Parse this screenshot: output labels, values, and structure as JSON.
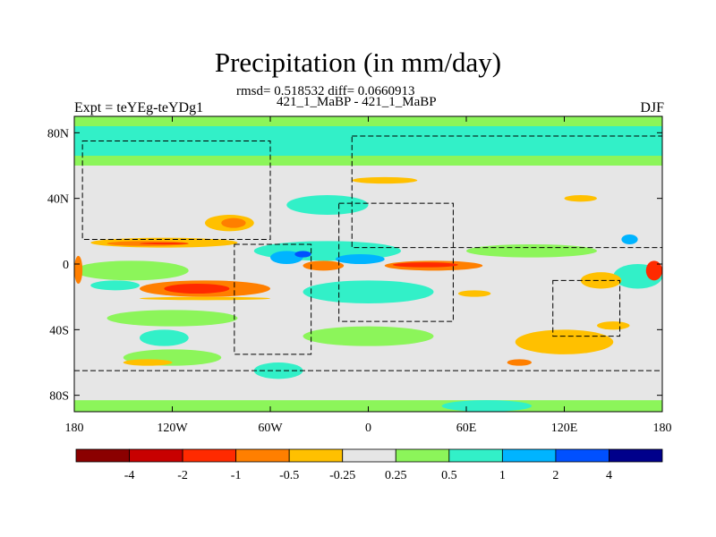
{
  "title": "Precipitation (in mm/day)",
  "stats": "rmsd= 0.518532 diff= 0.0660913",
  "subtitle": "421_1_MaBP - 421_1_MaBP",
  "left_label": "Expt = teYEg-teYDg1",
  "right_label": "DJF",
  "chart_data": {
    "type": "heatmap",
    "projection": "cylindrical-equidistant",
    "xlim": [
      -180,
      180
    ],
    "ylim": [
      -90,
      90
    ],
    "x_ticks": [
      {
        "value": -180,
        "label": "180"
      },
      {
        "value": -120,
        "label": "120W"
      },
      {
        "value": -60,
        "label": "60W"
      },
      {
        "value": 0,
        "label": "0"
      },
      {
        "value": 60,
        "label": "60E"
      },
      {
        "value": 120,
        "label": "120E"
      },
      {
        "value": 180,
        "label": "180"
      }
    ],
    "y_ticks": [
      {
        "value": 80,
        "label": "80N"
      },
      {
        "value": 40,
        "label": "40N"
      },
      {
        "value": 0,
        "label": "0"
      },
      {
        "value": -40,
        "label": "40S"
      },
      {
        "value": -80,
        "label": "80S"
      }
    ],
    "colorbar": {
      "levels": [
        -4,
        -2,
        -1,
        -0.5,
        -0.25,
        0.25,
        0.5,
        1,
        2,
        4
      ],
      "labels": [
        "-4",
        "-2",
        "-1",
        "-0.5",
        "-0.25",
        "0.25",
        "0.5",
        "1",
        "2",
        "4"
      ],
      "colors": [
        "#8b0000",
        "#c80000",
        "#ff2a00",
        "#ff7f00",
        "#ffc000",
        "#e6e6e6",
        "#8cf55a",
        "#32f0c8",
        "#00b4ff",
        "#0050ff",
        "#00008b"
      ]
    },
    "regions": [
      {
        "bin": 7,
        "lon": [
          -180,
          180
        ],
        "lat": [
          62,
          90
        ]
      },
      {
        "bin": 6,
        "lon": [
          -180,
          180
        ],
        "lat": [
          60,
          66
        ]
      },
      {
        "bin": 6,
        "lon": [
          -180,
          180
        ],
        "lat": [
          84,
          90
        ]
      },
      {
        "bin": 6,
        "lon": [
          -180,
          180
        ],
        "lat": [
          -90,
          -83
        ]
      },
      {
        "bin": 7,
        "lon": [
          45,
          100
        ],
        "lat": [
          -90,
          -83
        ]
      },
      {
        "bin": 6,
        "lon": [
          -180,
          -110
        ],
        "lat": [
          -10,
          2
        ]
      },
      {
        "bin": 6,
        "lon": [
          -160,
          -80
        ],
        "lat": [
          -38,
          -28
        ]
      },
      {
        "bin": 6,
        "lon": [
          60,
          140
        ],
        "lat": [
          4,
          12
        ]
      },
      {
        "bin": 6,
        "lon": [
          -40,
          40
        ],
        "lat": [
          -50,
          -38
        ]
      },
      {
        "bin": 6,
        "lon": [
          -150,
          -90
        ],
        "lat": [
          -62,
          -52
        ]
      },
      {
        "bin": 7,
        "lon": [
          -70,
          20
        ],
        "lat": [
          2,
          14
        ]
      },
      {
        "bin": 7,
        "lon": [
          -40,
          40
        ],
        "lat": [
          -24,
          -10
        ]
      },
      {
        "bin": 7,
        "lon": [
          -50,
          0
        ],
        "lat": [
          30,
          42
        ]
      },
      {
        "bin": 7,
        "lon": [
          150,
          180
        ],
        "lat": [
          -15,
          0
        ]
      },
      {
        "bin": 7,
        "lon": [
          -70,
          -40
        ],
        "lat": [
          -70,
          -60
        ]
      },
      {
        "bin": 7,
        "lon": [
          -170,
          -140
        ],
        "lat": [
          -16,
          -10
        ]
      },
      {
        "bin": 7,
        "lon": [
          -140,
          -110
        ],
        "lat": [
          -50,
          -40
        ]
      },
      {
        "bin": 8,
        "lon": [
          -60,
          -40
        ],
        "lat": [
          0,
          8
        ]
      },
      {
        "bin": 8,
        "lon": [
          -20,
          10
        ],
        "lat": [
          0,
          6
        ]
      },
      {
        "bin": 8,
        "lon": [
          155,
          165
        ],
        "lat": [
          12,
          18
        ]
      },
      {
        "bin": 9,
        "lon": [
          -45,
          -35
        ],
        "lat": [
          4,
          8
        ]
      },
      {
        "bin": 4,
        "lon": [
          -170,
          -80
        ],
        "lat": [
          10,
          16
        ]
      },
      {
        "bin": 3,
        "lon": [
          -160,
          -110
        ],
        "lat": [
          11,
          14
        ]
      },
      {
        "bin": 2,
        "lon": [
          -140,
          -110
        ],
        "lat": [
          12,
          13
        ]
      },
      {
        "bin": 4,
        "lon": [
          -100,
          -70
        ],
        "lat": [
          20,
          30
        ]
      },
      {
        "bin": 3,
        "lon": [
          -90,
          -75
        ],
        "lat": [
          22,
          28
        ]
      },
      {
        "bin": 3,
        "lon": [
          -140,
          -60
        ],
        "lat": [
          -20,
          -10
        ]
      },
      {
        "bin": 2,
        "lon": [
          -125,
          -85
        ],
        "lat": [
          -18,
          -12
        ]
      },
      {
        "bin": 4,
        "lon": [
          -140,
          -60
        ],
        "lat": [
          -22,
          -20
        ]
      },
      {
        "bin": 3,
        "lon": [
          10,
          70
        ],
        "lat": [
          -4,
          2
        ]
      },
      {
        "bin": 2,
        "lon": [
          15,
          55
        ],
        "lat": [
          -2,
          1
        ]
      },
      {
        "bin": 3,
        "lon": [
          -180,
          -175
        ],
        "lat": [
          -12,
          5
        ]
      },
      {
        "bin": 2,
        "lon": [
          170,
          180
        ],
        "lat": [
          -10,
          2
        ]
      },
      {
        "bin": 4,
        "lon": [
          130,
          155
        ],
        "lat": [
          -15,
          -5
        ]
      },
      {
        "bin": 4,
        "lon": [
          90,
          150
        ],
        "lat": [
          -55,
          -40
        ]
      },
      {
        "bin": 4,
        "lon": [
          140,
          160
        ],
        "lat": [
          -40,
          -35
        ]
      },
      {
        "bin": 4,
        "lon": [
          120,
          140
        ],
        "lat": [
          38,
          42
        ]
      },
      {
        "bin": 4,
        "lon": [
          -10,
          30
        ],
        "lat": [
          49,
          53
        ]
      },
      {
        "bin": 3,
        "lon": [
          -40,
          -15
        ],
        "lat": [
          -4,
          2
        ]
      },
      {
        "bin": 4,
        "lon": [
          55,
          75
        ],
        "lat": [
          -20,
          -16
        ]
      },
      {
        "bin": 3,
        "lon": [
          85,
          100
        ],
        "lat": [
          -62,
          -58
        ]
      },
      {
        "bin": 4,
        "lon": [
          -150,
          -120
        ],
        "lat": [
          -62,
          -58
        ]
      }
    ],
    "land_outlines": [
      {
        "name": "north-america",
        "lon": [
          -175,
          -60
        ],
        "lat": [
          15,
          75
        ]
      },
      {
        "name": "south-america",
        "lon": [
          -82,
          -35
        ],
        "lat": [
          -55,
          12
        ]
      },
      {
        "name": "eurasia",
        "lon": [
          -10,
          180
        ],
        "lat": [
          10,
          78
        ]
      },
      {
        "name": "africa",
        "lon": [
          -18,
          52
        ],
        "lat": [
          -35,
          37
        ]
      },
      {
        "name": "australia",
        "lon": [
          113,
          154
        ],
        "lat": [
          -44,
          -10
        ]
      },
      {
        "name": "antarctica",
        "lon": [
          -180,
          180
        ],
        "lat": [
          -90,
          -65
        ]
      }
    ]
  }
}
